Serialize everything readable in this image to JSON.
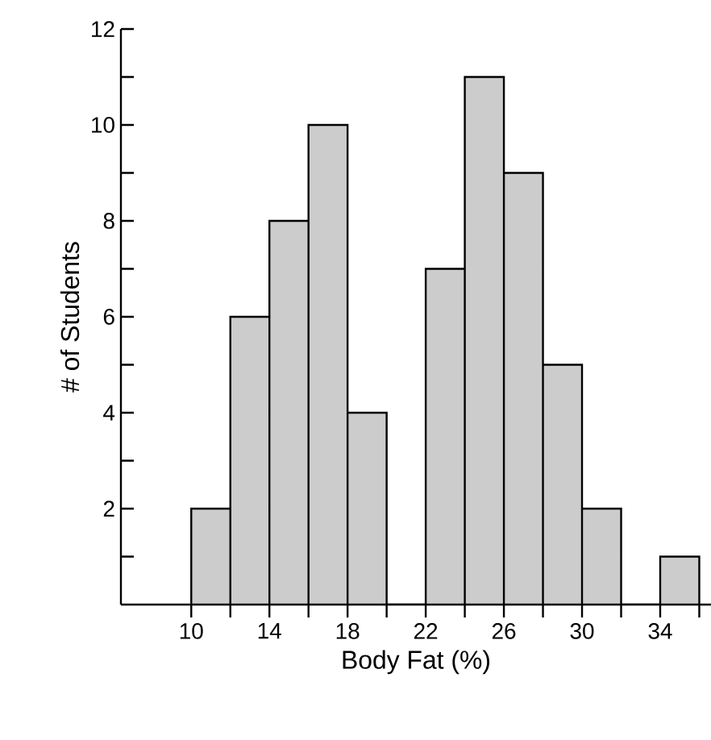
{
  "chart_data": {
    "type": "histogram",
    "xlabel": "Body Fat (%)",
    "ylabel": "# of Students",
    "bins": [
      10,
      12,
      14,
      16,
      18,
      20,
      22,
      24,
      26,
      28,
      30,
      32,
      34,
      36
    ],
    "values": [
      2,
      6,
      8,
      10,
      4,
      0,
      7,
      11,
      9,
      5,
      2,
      0,
      1
    ],
    "color": "#cccccc",
    "xlim": [
      6.4,
      36.6
    ],
    "xticks": [
      10,
      {
        "value": 12,
        "label": null
      },
      14,
      {
        "value": 16,
        "label": null
      },
      18,
      {
        "value": 20,
        "label": null
      },
      22,
      {
        "value": 24,
        "label": null
      },
      26,
      {
        "value": 28,
        "label": null
      },
      30,
      {
        "value": 32,
        "label": null
      },
      34,
      {
        "value": 36,
        "label": null
      }
    ],
    "ylim": [
      0,
      12
    ],
    "yticks": [
      {
        "value": 1,
        "label": null
      },
      2,
      {
        "value": 3,
        "label": null
      },
      4,
      {
        "value": 5,
        "label": null
      },
      6,
      {
        "value": 7,
        "label": null
      },
      8,
      {
        "value": 9,
        "label": null
      },
      10,
      {
        "value": 11,
        "label": null
      },
      12
    ],
    "grid": false
  }
}
